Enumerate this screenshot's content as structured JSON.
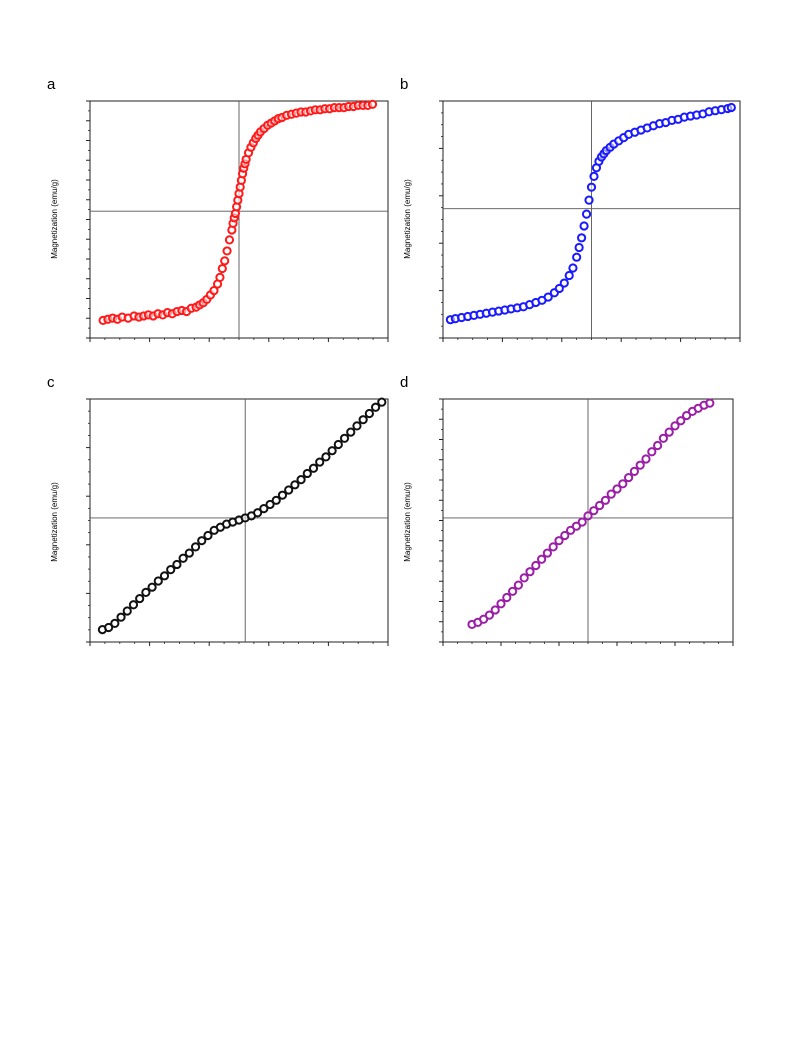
{
  "chart_data": [
    {
      "panel": "a",
      "type": "scatter",
      "ylabel": "Magnetization (emu/g)",
      "xlabel": "",
      "marker_color": "#ff1a1a",
      "marker": "open-circle",
      "xlim": [
        -1.25,
        1.25
      ],
      "ylim": [
        -1.15,
        1.0
      ],
      "axes_cross_at_zero": true,
      "x": [
        -1.14,
        -1.1,
        -1.06,
        -1.02,
        -0.98,
        -0.93,
        -0.88,
        -0.84,
        -0.8,
        -0.76,
        -0.72,
        -0.68,
        -0.64,
        -0.6,
        -0.56,
        -0.52,
        -0.48,
        -0.44,
        -0.4,
        -0.36,
        -0.33,
        -0.3,
        -0.27,
        -0.24,
        -0.21,
        -0.18,
        -0.16,
        -0.14,
        -0.12,
        -0.1,
        -0.08,
        -0.06,
        -0.05,
        -0.04,
        -0.03,
        -0.02,
        -0.01,
        0.0,
        0.01,
        0.02,
        0.03,
        0.04,
        0.05,
        0.06,
        0.08,
        0.1,
        0.12,
        0.14,
        0.16,
        0.18,
        0.21,
        0.24,
        0.27,
        0.3,
        0.33,
        0.36,
        0.4,
        0.44,
        0.48,
        0.52,
        0.56,
        0.6,
        0.64,
        0.68,
        0.72,
        0.76,
        0.8,
        0.84,
        0.88,
        0.92,
        0.96,
        1.0,
        1.04,
        1.08,
        1.12
      ],
      "y": [
        -0.99,
        -0.98,
        -0.97,
        -0.98,
        -0.96,
        -0.97,
        -0.95,
        -0.96,
        -0.95,
        -0.94,
        -0.95,
        -0.93,
        -0.94,
        -0.92,
        -0.93,
        -0.91,
        -0.9,
        -0.91,
        -0.88,
        -0.87,
        -0.85,
        -0.83,
        -0.8,
        -0.76,
        -0.72,
        -0.66,
        -0.6,
        -0.52,
        -0.45,
        -0.36,
        -0.26,
        -0.17,
        -0.11,
        -0.06,
        -0.02,
        0.04,
        0.1,
        0.16,
        0.22,
        0.28,
        0.34,
        0.39,
        0.43,
        0.47,
        0.53,
        0.58,
        0.62,
        0.66,
        0.69,
        0.72,
        0.75,
        0.78,
        0.8,
        0.82,
        0.84,
        0.85,
        0.87,
        0.88,
        0.89,
        0.9,
        0.9,
        0.91,
        0.92,
        0.92,
        0.93,
        0.93,
        0.94,
        0.94,
        0.94,
        0.95,
        0.95,
        0.96,
        0.96,
        0.96,
        0.97
      ]
    },
    {
      "panel": "b",
      "type": "scatter",
      "ylabel": "Magnetization (emu/g)",
      "xlabel": "",
      "marker_color": "#1a1aff",
      "marker": "open-circle",
      "xlim": [
        -1.2,
        1.2
      ],
      "ylim": [
        -1.2,
        1.0
      ],
      "axes_cross_at_zero": true,
      "x": [
        -1.14,
        -1.1,
        -1.05,
        -1.0,
        -0.95,
        -0.9,
        -0.85,
        -0.8,
        -0.75,
        -0.7,
        -0.65,
        -0.6,
        -0.55,
        -0.5,
        -0.45,
        -0.4,
        -0.35,
        -0.3,
        -0.26,
        -0.22,
        -0.18,
        -0.15,
        -0.12,
        -0.1,
        -0.08,
        -0.06,
        -0.04,
        -0.02,
        0.0,
        0.02,
        0.04,
        0.06,
        0.08,
        0.1,
        0.12,
        0.15,
        0.18,
        0.22,
        0.26,
        0.3,
        0.35,
        0.4,
        0.45,
        0.5,
        0.55,
        0.6,
        0.65,
        0.7,
        0.75,
        0.8,
        0.85,
        0.9,
        0.95,
        1.0,
        1.05,
        1.1,
        1.13
      ],
      "y": [
        -1.03,
        -1.02,
        -1.01,
        -1.0,
        -0.99,
        -0.98,
        -0.97,
        -0.96,
        -0.95,
        -0.94,
        -0.93,
        -0.92,
        -0.91,
        -0.89,
        -0.87,
        -0.85,
        -0.82,
        -0.78,
        -0.74,
        -0.69,
        -0.62,
        -0.55,
        -0.45,
        -0.36,
        -0.27,
        -0.16,
        -0.05,
        0.08,
        0.2,
        0.3,
        0.38,
        0.44,
        0.48,
        0.51,
        0.54,
        0.57,
        0.6,
        0.63,
        0.66,
        0.69,
        0.71,
        0.73,
        0.75,
        0.77,
        0.79,
        0.8,
        0.82,
        0.83,
        0.85,
        0.86,
        0.87,
        0.88,
        0.9,
        0.91,
        0.92,
        0.93,
        0.94
      ]
    },
    {
      "panel": "c",
      "type": "scatter",
      "ylabel": "Magnetization (emu/g)",
      "xlabel": "",
      "marker_color": "#111111",
      "marker": "open-circle",
      "xlim": [
        -1.25,
        1.15
      ],
      "ylim": [
        -1.2,
        1.15
      ],
      "axes_cross_at_zero": true,
      "x": [
        -1.15,
        -1.1,
        -1.05,
        -1.0,
        -0.95,
        -0.9,
        -0.85,
        -0.8,
        -0.75,
        -0.7,
        -0.65,
        -0.6,
        -0.55,
        -0.5,
        -0.45,
        -0.4,
        -0.35,
        -0.3,
        -0.25,
        -0.2,
        -0.15,
        -0.1,
        -0.05,
        0.0,
        0.05,
        0.1,
        0.15,
        0.2,
        0.25,
        0.3,
        0.35,
        0.4,
        0.45,
        0.5,
        0.55,
        0.6,
        0.65,
        0.7,
        0.75,
        0.8,
        0.85,
        0.9,
        0.95,
        1.0,
        1.05,
        1.1
      ],
      "y": [
        -1.08,
        -1.06,
        -1.02,
        -0.96,
        -0.9,
        -0.84,
        -0.78,
        -0.72,
        -0.67,
        -0.61,
        -0.56,
        -0.5,
        -0.45,
        -0.39,
        -0.34,
        -0.28,
        -0.22,
        -0.17,
        -0.12,
        -0.09,
        -0.06,
        -0.04,
        -0.02,
        0.0,
        0.02,
        0.05,
        0.09,
        0.13,
        0.17,
        0.22,
        0.27,
        0.32,
        0.37,
        0.43,
        0.48,
        0.54,
        0.59,
        0.65,
        0.71,
        0.77,
        0.83,
        0.89,
        0.95,
        1.01,
        1.07,
        1.12
      ]
    },
    {
      "panel": "d",
      "type": "scatter",
      "ylabel": "Magnetization (emu/g)",
      "xlabel": "",
      "marker_color": "#9b1fa6",
      "marker": "open-circle",
      "xlim": [
        -1.25,
        1.25
      ],
      "ylim": [
        -1.2,
        1.15
      ],
      "axes_cross_at_zero": true,
      "x": [
        -1.0,
        -0.95,
        -0.9,
        -0.85,
        -0.8,
        -0.75,
        -0.7,
        -0.65,
        -0.6,
        -0.55,
        -0.5,
        -0.45,
        -0.4,
        -0.35,
        -0.3,
        -0.25,
        -0.2,
        -0.15,
        -0.1,
        -0.05,
        0.0,
        0.05,
        0.1,
        0.15,
        0.2,
        0.25,
        0.3,
        0.35,
        0.4,
        0.45,
        0.5,
        0.55,
        0.6,
        0.65,
        0.7,
        0.75,
        0.8,
        0.85,
        0.9,
        0.95,
        1.0,
        1.05
      ],
      "y": [
        -1.03,
        -1.01,
        -0.98,
        -0.94,
        -0.89,
        -0.83,
        -0.77,
        -0.71,
        -0.65,
        -0.58,
        -0.52,
        -0.46,
        -0.4,
        -0.34,
        -0.28,
        -0.22,
        -0.17,
        -0.12,
        -0.08,
        -0.04,
        0.02,
        0.07,
        0.12,
        0.17,
        0.23,
        0.28,
        0.33,
        0.39,
        0.45,
        0.51,
        0.57,
        0.64,
        0.7,
        0.77,
        0.83,
        0.89,
        0.94,
        0.99,
        1.03,
        1.06,
        1.09,
        1.11
      ]
    }
  ]
}
